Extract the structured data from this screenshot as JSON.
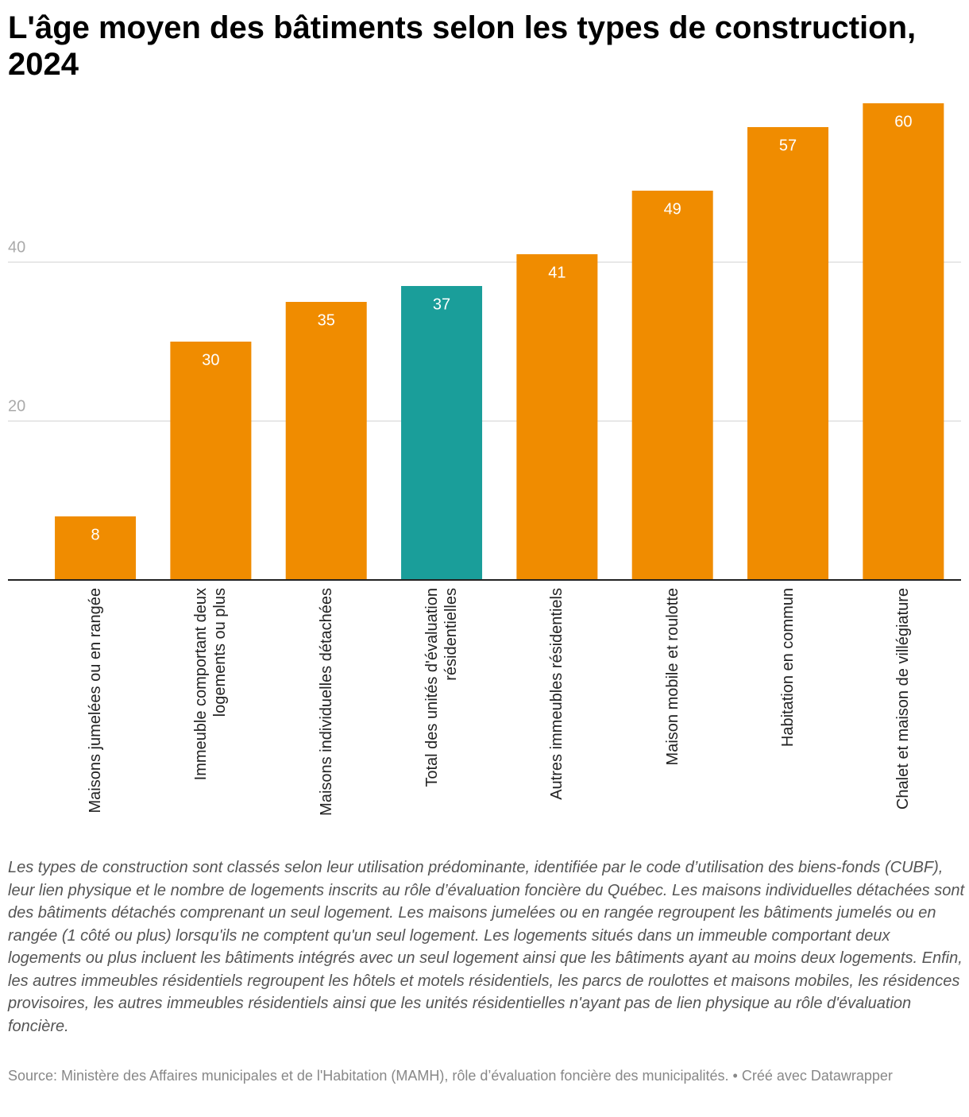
{
  "chart_data": {
    "type": "bar",
    "title": "L'âge moyen des bâtiments selon les types de construction, 2024",
    "categories": [
      "Maisons jumelées ou en rangée",
      "Immeuble comportant deux logements ou plus",
      "Maisons individuelles détachées",
      "Total des unités d'évaluation résidentielles",
      "Autres immeubles résidentiels",
      "Maison mobile et roulotte",
      "Habitation en commun",
      "Chalet et maison de villégiature"
    ],
    "values": [
      8,
      30,
      35,
      37,
      41,
      49,
      57,
      60
    ],
    "colors": [
      "#f08c00",
      "#f08c00",
      "#f08c00",
      "#1a9e9a",
      "#f08c00",
      "#f08c00",
      "#f08c00",
      "#f08c00"
    ],
    "ylim": [
      0,
      60
    ],
    "yticks": [
      20,
      40
    ],
    "grid": true,
    "note": "Les types de construction sont classés selon leur utilisation prédominante, identifiée par le code d’utilisation des biens-fonds (CUBF), leur lien physique et le nombre de logements inscrits au rôle d’évaluation foncière du Québec. Les maisons individuelles détachées sont des bâtiments détachés comprenant un seul logement. Les maisons jumelées ou en rangée regroupent les bâtiments jumelés ou en rangée (1 côté ou plus) lorsqu'ils ne comptent qu'un seul logement. Les logements situés dans un immeuble comportant deux logements ou plus incluent les bâtiments intégrés avec un seul logement ainsi que les bâtiments ayant au moins deux logements. Enfin, les autres immeubles résidentiels regroupent les hôtels et motels résidentiels, les parcs de roulottes et maisons mobiles, les résidences provisoires, les autres immeubles résidentiels ainsi que les unités résidentielles n'ayant pas de lien physique au rôle d'évaluation foncière.",
    "source": "Source: Ministère des Affaires municipales et de l'Habitation (MAMH), rôle d’évaluation foncière des municipalités. • Créé avec Datawrapper"
  }
}
